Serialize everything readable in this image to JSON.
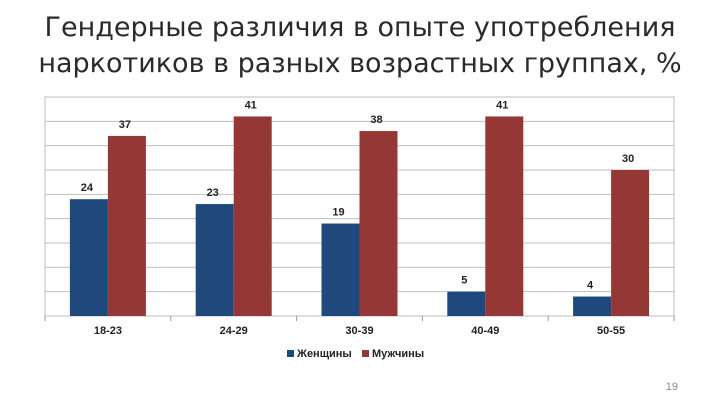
{
  "page_number": "19",
  "chart_data": {
    "type": "bar",
    "title_lines": [
      "Гендерные различия в опыте употребления",
      "наркотиков в разных возрастных группах, %"
    ],
    "categories": [
      "18-23",
      "24-29",
      "30-39",
      "40-49",
      "50-55"
    ],
    "series": [
      {
        "name": "Женщины",
        "color": "#1f497d",
        "values": [
          24,
          23,
          19,
          5,
          4
        ]
      },
      {
        "name": "Мужчины",
        "color": "#953735",
        "values": [
          37,
          41,
          38,
          41,
          30
        ]
      }
    ],
    "ylim": [
      0,
      45
    ],
    "grid": true,
    "legend": "bottom",
    "data_labels": true
  }
}
